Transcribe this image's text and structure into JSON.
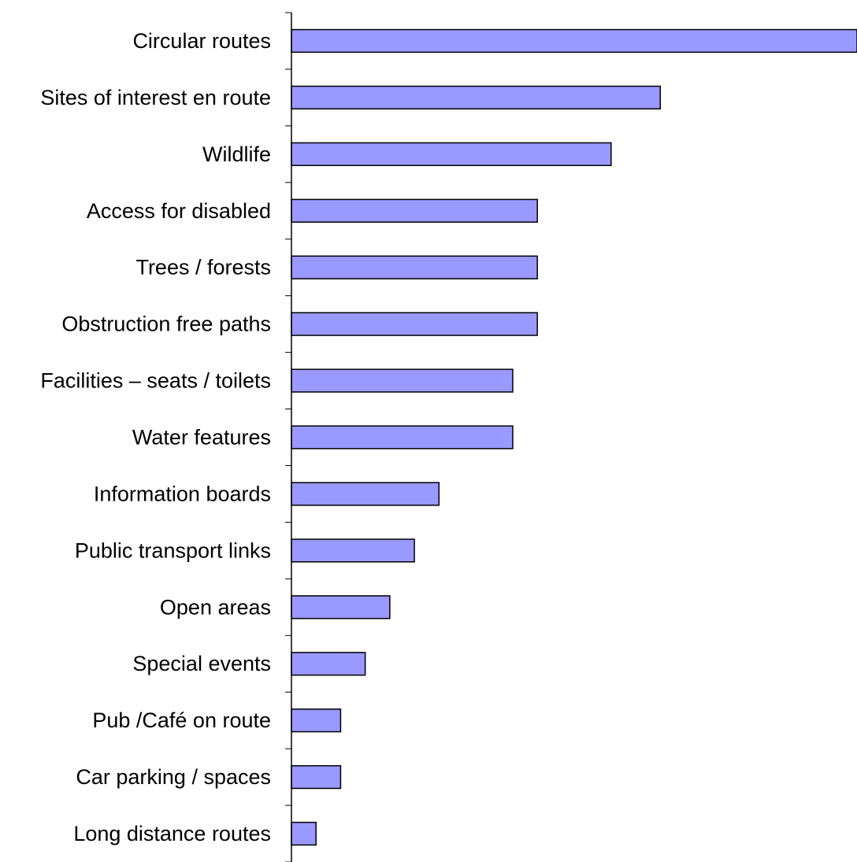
{
  "chart_data": {
    "type": "bar",
    "orientation": "horizontal",
    "title": "",
    "xlabel": "",
    "ylabel": "",
    "categories": [
      "Circular routes",
      "Sites of interest en route",
      "Wildlife",
      "Access for disabled",
      "Trees / forests",
      "Obstruction free paths",
      "Facilities – seats / toilets",
      "Water features",
      "Information boards",
      "Public transport links",
      "Open areas",
      "Special events",
      "Pub /Café on route",
      "Car parking / spaces",
      "Long distance routes"
    ],
    "values": [
      23,
      15,
      13,
      10,
      10,
      10,
      9,
      9,
      6,
      5,
      4,
      3,
      2,
      2,
      1
    ],
    "xlim": [
      0,
      23
    ],
    "grid": false,
    "legend": "none",
    "bar_color": "#9999FF",
    "bar_outline": "#000000"
  }
}
